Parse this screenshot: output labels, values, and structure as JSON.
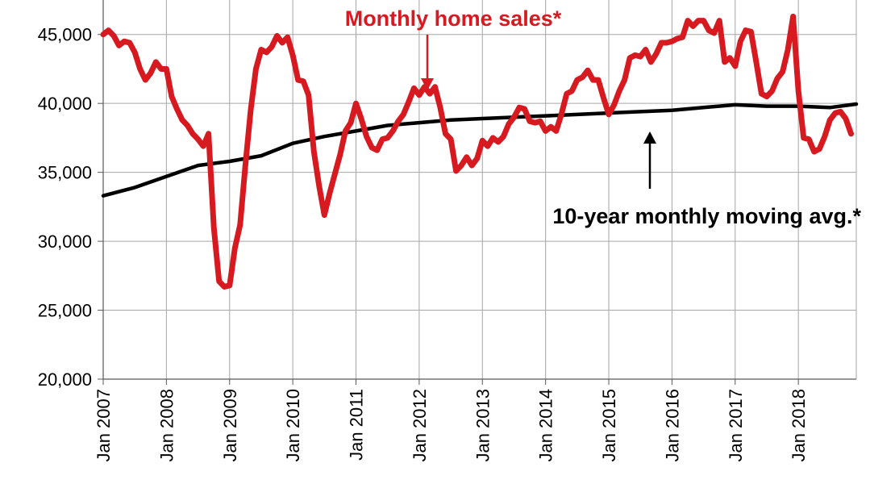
{
  "chart_data": {
    "type": "line",
    "title": "",
    "xlabel": "",
    "ylabel": "",
    "x_axis_type": "date",
    "x_range": [
      "2007-01",
      "2018-12"
    ],
    "ylim": [
      20000,
      47500
    ],
    "grid": true,
    "y_ticks": [
      {
        "value": 20000,
        "label": "20,000"
      },
      {
        "value": 25000,
        "label": "25,000"
      },
      {
        "value": 30000,
        "label": "30,000"
      },
      {
        "value": 35000,
        "label": "35,000"
      },
      {
        "value": 40000,
        "label": "40,000"
      },
      {
        "value": 45000,
        "label": "45,000"
      }
    ],
    "x_ticks": [
      {
        "value": "2007-01",
        "label": "Jan 2007"
      },
      {
        "value": "2008-01",
        "label": "Jan 2008"
      },
      {
        "value": "2009-01",
        "label": "Jan 2009"
      },
      {
        "value": "2010-01",
        "label": "Jan 2010"
      },
      {
        "value": "2011-01",
        "label": "Jan 2011"
      },
      {
        "value": "2012-01",
        "label": "Jan 2012"
      },
      {
        "value": "2013-01",
        "label": "Jan 2013"
      },
      {
        "value": "2014-01",
        "label": "Jan 2014"
      },
      {
        "value": "2015-01",
        "label": "Jan 2015"
      },
      {
        "value": "2016-01",
        "label": "Jan 2016"
      },
      {
        "value": "2017-01",
        "label": "Jan 2017"
      },
      {
        "value": "2018-01",
        "label": "Jan 2018"
      }
    ],
    "series": [
      {
        "name": "Monthly home sales*",
        "color": "#d71920",
        "points": [
          [
            "2007-01",
            45000
          ],
          [
            "2007-02",
            45300
          ],
          [
            "2007-03",
            44900
          ],
          [
            "2007-04",
            44200
          ],
          [
            "2007-05",
            44500
          ],
          [
            "2007-06",
            44400
          ],
          [
            "2007-07",
            43700
          ],
          [
            "2007-08",
            42500
          ],
          [
            "2007-09",
            41700
          ],
          [
            "2007-10",
            42200
          ],
          [
            "2007-11",
            43000
          ],
          [
            "2007-12",
            42500
          ],
          [
            "2008-01",
            42500
          ],
          [
            "2008-02",
            40500
          ],
          [
            "2008-03",
            39600
          ],
          [
            "2008-04",
            38800
          ],
          [
            "2008-05",
            38400
          ],
          [
            "2008-06",
            37800
          ],
          [
            "2008-07",
            37400
          ],
          [
            "2008-08",
            36900
          ],
          [
            "2008-09",
            37800
          ],
          [
            "2008-10",
            31000
          ],
          [
            "2008-11",
            27100
          ],
          [
            "2008-12",
            26700
          ],
          [
            "2009-01",
            26800
          ],
          [
            "2009-02",
            29500
          ],
          [
            "2009-03",
            31200
          ],
          [
            "2009-04",
            35500
          ],
          [
            "2009-05",
            39500
          ],
          [
            "2009-06",
            42500
          ],
          [
            "2009-07",
            43900
          ],
          [
            "2009-08",
            43700
          ],
          [
            "2009-09",
            44100
          ],
          [
            "2009-10",
            44900
          ],
          [
            "2009-11",
            44400
          ],
          [
            "2009-12",
            44800
          ],
          [
            "2010-01",
            43500
          ],
          [
            "2010-02",
            41700
          ],
          [
            "2010-03",
            41600
          ],
          [
            "2010-04",
            40600
          ],
          [
            "2010-05",
            36500
          ],
          [
            "2010-06",
            34000
          ],
          [
            "2010-07",
            31900
          ],
          [
            "2010-08",
            33500
          ],
          [
            "2010-09",
            34900
          ],
          [
            "2010-10",
            36300
          ],
          [
            "2010-11",
            38000
          ],
          [
            "2010-12",
            38600
          ],
          [
            "2011-01",
            40000
          ],
          [
            "2011-02",
            38900
          ],
          [
            "2011-03",
            37600
          ],
          [
            "2011-04",
            36800
          ],
          [
            "2011-05",
            36600
          ],
          [
            "2011-06",
            37400
          ],
          [
            "2011-07",
            37500
          ],
          [
            "2011-08",
            38000
          ],
          [
            "2011-09",
            38700
          ],
          [
            "2011-10",
            39200
          ],
          [
            "2011-11",
            40100
          ],
          [
            "2011-12",
            41100
          ],
          [
            "2012-01",
            40600
          ],
          [
            "2012-02",
            41200
          ],
          [
            "2012-03",
            40700
          ],
          [
            "2012-04",
            41200
          ],
          [
            "2012-05",
            39700
          ],
          [
            "2012-06",
            37800
          ],
          [
            "2012-07",
            37400
          ],
          [
            "2012-08",
            35100
          ],
          [
            "2012-09",
            35500
          ],
          [
            "2012-10",
            36100
          ],
          [
            "2012-11",
            35500
          ],
          [
            "2012-12",
            36000
          ],
          [
            "2013-01",
            37300
          ],
          [
            "2013-02",
            36900
          ],
          [
            "2013-03",
            37500
          ],
          [
            "2013-04",
            37200
          ],
          [
            "2013-05",
            37600
          ],
          [
            "2013-06",
            38500
          ],
          [
            "2013-07",
            39000
          ],
          [
            "2013-08",
            39700
          ],
          [
            "2013-09",
            39600
          ],
          [
            "2013-10",
            38700
          ],
          [
            "2013-11",
            38600
          ],
          [
            "2013-12",
            38700
          ],
          [
            "2014-01",
            38000
          ],
          [
            "2014-02",
            38300
          ],
          [
            "2014-03",
            38000
          ],
          [
            "2014-04",
            39200
          ],
          [
            "2014-05",
            40700
          ],
          [
            "2014-06",
            40900
          ],
          [
            "2014-07",
            41700
          ],
          [
            "2014-08",
            41900
          ],
          [
            "2014-09",
            42400
          ],
          [
            "2014-10",
            41700
          ],
          [
            "2014-11",
            41700
          ],
          [
            "2014-12",
            40400
          ],
          [
            "2015-01",
            39200
          ],
          [
            "2015-02",
            39900
          ],
          [
            "2015-03",
            40900
          ],
          [
            "2015-04",
            41700
          ],
          [
            "2015-05",
            43300
          ],
          [
            "2015-06",
            43500
          ],
          [
            "2015-07",
            43400
          ],
          [
            "2015-08",
            43900
          ],
          [
            "2015-09",
            43000
          ],
          [
            "2015-10",
            43600
          ],
          [
            "2015-11",
            44400
          ],
          [
            "2015-12",
            44400
          ],
          [
            "2016-01",
            44500
          ],
          [
            "2016-02",
            44700
          ],
          [
            "2016-03",
            44800
          ],
          [
            "2016-04",
            46000
          ],
          [
            "2016-05",
            45600
          ],
          [
            "2016-06",
            46000
          ],
          [
            "2016-07",
            46000
          ],
          [
            "2016-08",
            45300
          ],
          [
            "2016-09",
            45100
          ],
          [
            "2016-10",
            46000
          ],
          [
            "2016-11",
            43000
          ],
          [
            "2016-12",
            43300
          ],
          [
            "2017-01",
            42700
          ],
          [
            "2017-02",
            44500
          ],
          [
            "2017-03",
            45300
          ],
          [
            "2017-04",
            45200
          ],
          [
            "2017-05",
            43000
          ],
          [
            "2017-06",
            40700
          ],
          [
            "2017-07",
            40500
          ],
          [
            "2017-08",
            40900
          ],
          [
            "2017-09",
            41800
          ],
          [
            "2017-10",
            42300
          ],
          [
            "2017-11",
            43900
          ],
          [
            "2017-12",
            46300
          ],
          [
            "2018-01",
            40900
          ],
          [
            "2018-02",
            37500
          ],
          [
            "2018-03",
            37400
          ],
          [
            "2018-04",
            36500
          ],
          [
            "2018-05",
            36700
          ],
          [
            "2018-06",
            37600
          ],
          [
            "2018-07",
            38800
          ],
          [
            "2018-08",
            39300
          ],
          [
            "2018-09",
            39400
          ],
          [
            "2018-10",
            38900
          ],
          [
            "2018-11",
            37800
          ]
        ]
      },
      {
        "name": "10-year monthly moving avg.*",
        "color": "#000000",
        "points": [
          [
            "2007-01",
            33300
          ],
          [
            "2007-07",
            33900
          ],
          [
            "2008-01",
            34700
          ],
          [
            "2008-07",
            35500
          ],
          [
            "2009-01",
            35800
          ],
          [
            "2009-07",
            36200
          ],
          [
            "2010-01",
            37100
          ],
          [
            "2010-07",
            37600
          ],
          [
            "2011-01",
            38000
          ],
          [
            "2011-07",
            38400
          ],
          [
            "2012-01",
            38600
          ],
          [
            "2012-07",
            38800
          ],
          [
            "2013-01",
            38900
          ],
          [
            "2013-07",
            39000
          ],
          [
            "2014-01",
            39100
          ],
          [
            "2014-07",
            39200
          ],
          [
            "2015-01",
            39300
          ],
          [
            "2015-07",
            39400
          ],
          [
            "2016-01",
            39500
          ],
          [
            "2016-07",
            39700
          ],
          [
            "2017-01",
            39900
          ],
          [
            "2017-07",
            39800
          ],
          [
            "2018-01",
            39800
          ],
          [
            "2018-07",
            39700
          ],
          [
            "2018-12",
            39950
          ]
        ]
      }
    ],
    "annotations": [
      {
        "text": "Monthly home sales*",
        "color": "#d71920",
        "points_to": [
          "2012-03",
          41200
        ]
      },
      {
        "text": "10-year monthly moving avg.*",
        "color": "#000000",
        "points_to": [
          "2015-09",
          39300
        ]
      }
    ]
  }
}
